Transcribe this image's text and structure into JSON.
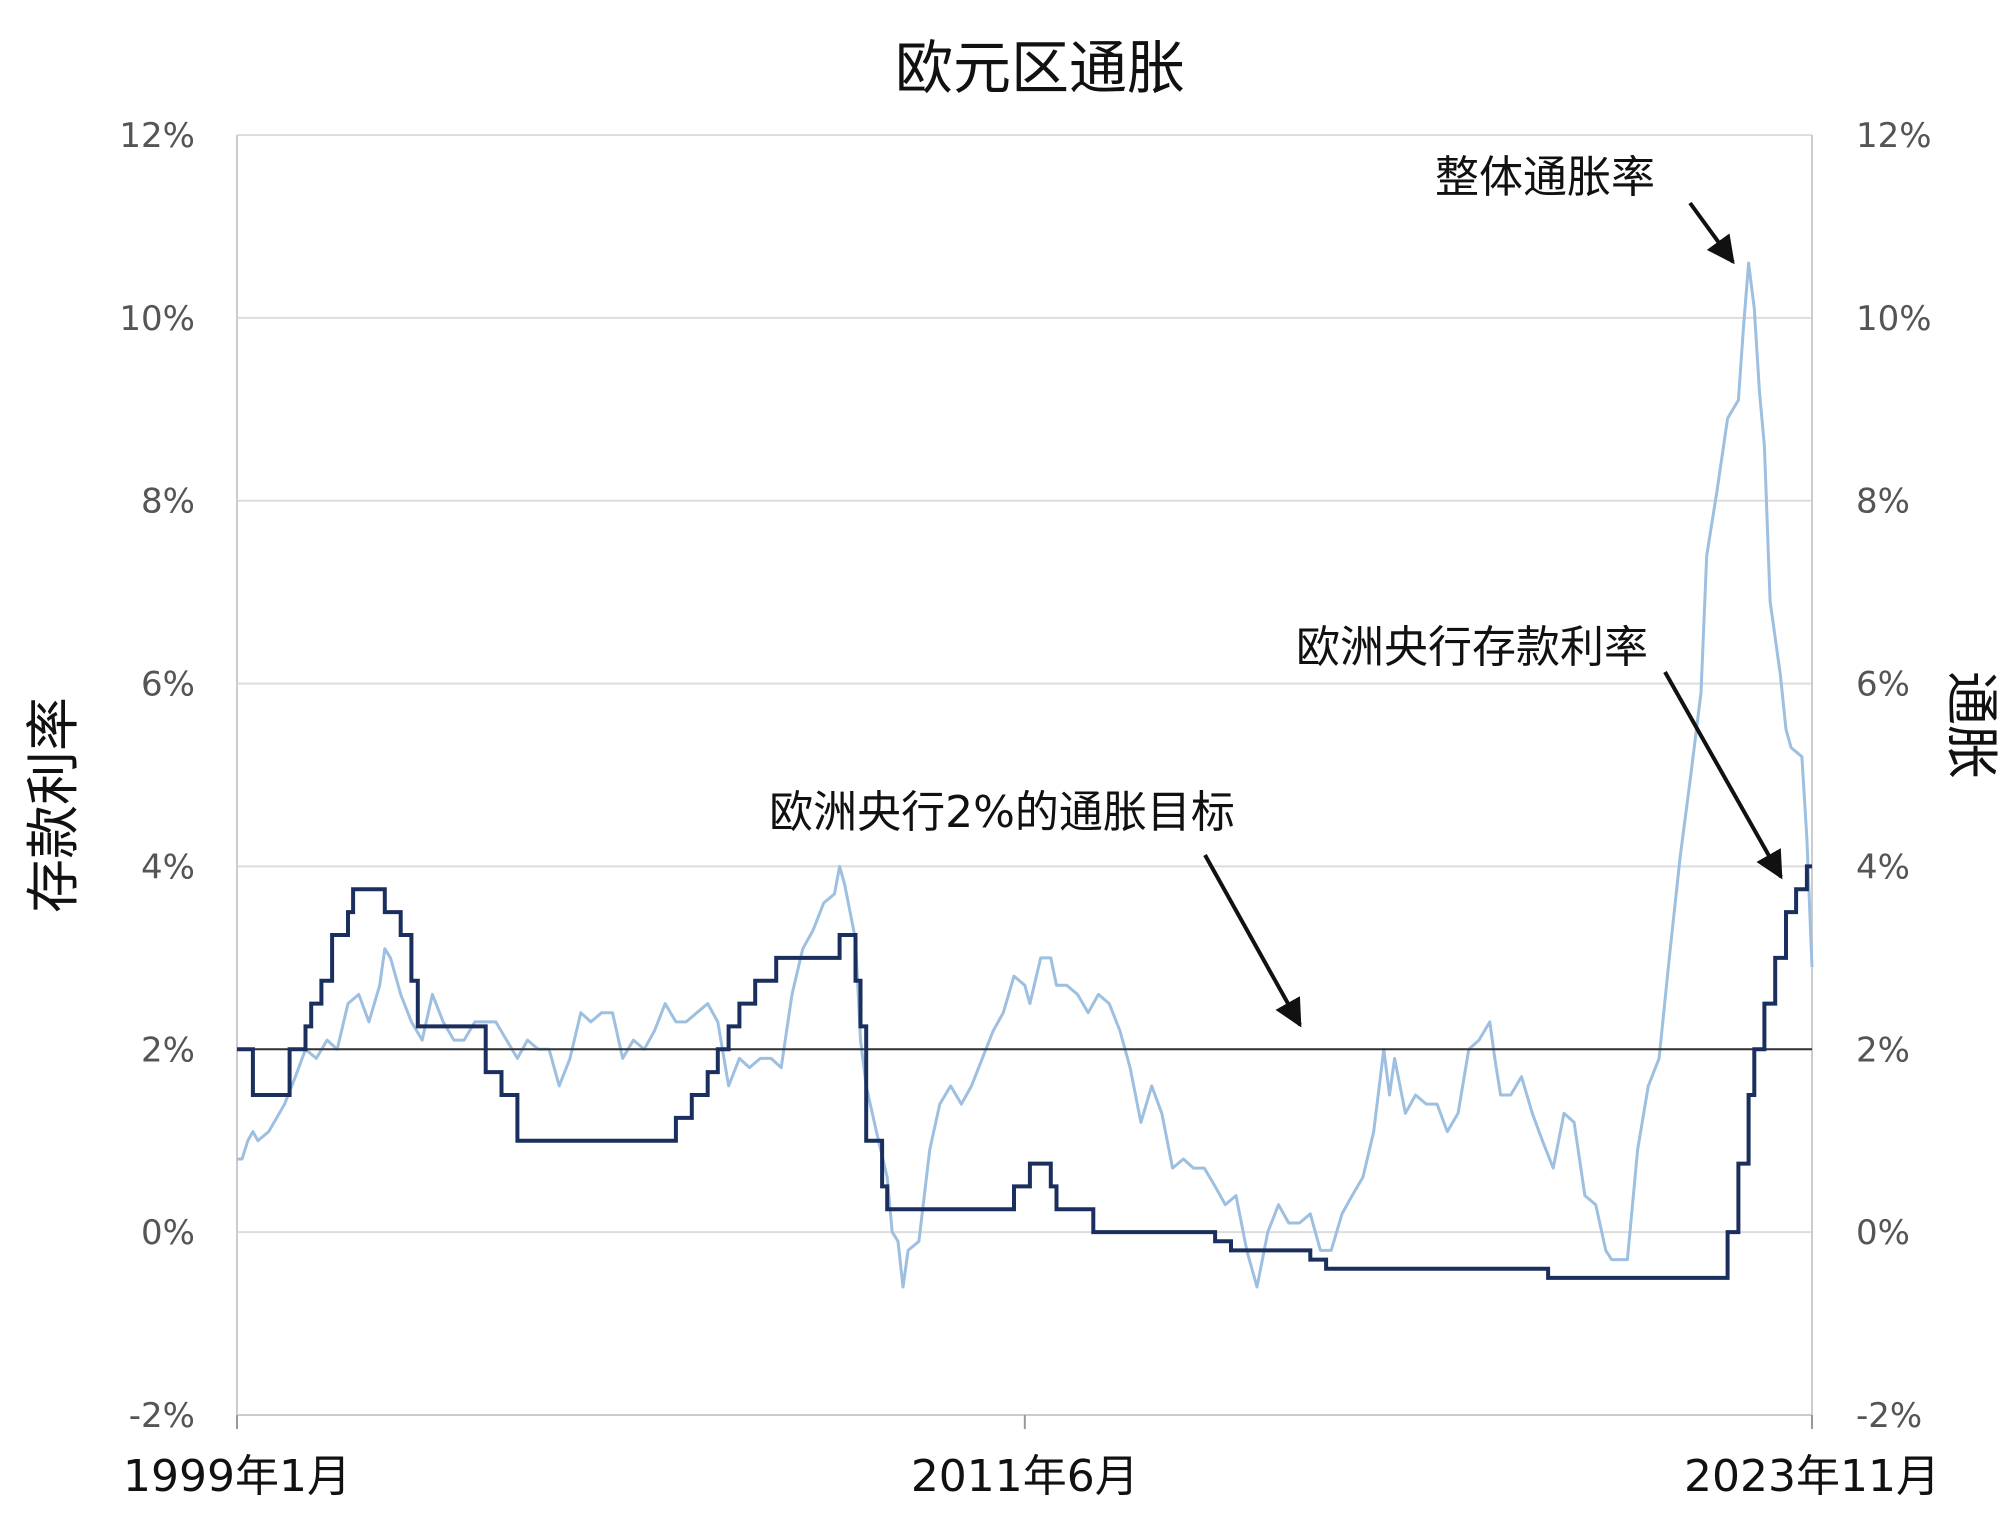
{
  "chart_data": {
    "type": "line",
    "title": "欧元区通胀",
    "ylabel_left": "存款利率",
    "ylabel_right": "通胀",
    "ylim": [
      -2,
      12
    ],
    "ytick_values": [
      -2,
      0,
      2,
      4,
      6,
      8,
      10,
      12
    ],
    "yticks_left": [
      "-2%",
      "0%",
      "2%",
      "4%",
      "6%",
      "8%",
      "10%",
      "12%"
    ],
    "yticks_right": [
      "-2%",
      "0%",
      "2%",
      "4%",
      "6%",
      "8%",
      "10%",
      "12%"
    ],
    "grid": true,
    "x_tick_labels": [
      {
        "label": "1999年1月",
        "value": 1999.0
      },
      {
        "label": "2011年6月",
        "value": 2011.42
      },
      {
        "label": "2023年11月",
        "value": 2023.83
      }
    ],
    "xlim": [
      1999.0,
      2023.83
    ],
    "annotations": [
      {
        "text": "整体通胀率"
      },
      {
        "text": "欧洲央行存款利率"
      },
      {
        "text": "欧洲央行2%的通胀目标"
      }
    ],
    "colors": {
      "deposit_rate": "#1b2f5e",
      "headline_inflation": "#9dbfe0",
      "target": "#333333",
      "grid": "#dddddd"
    },
    "series": [
      {
        "name": "欧洲央行存款利率",
        "step": true,
        "points": [
          [
            1999.0,
            2.0
          ],
          [
            1999.25,
            1.5
          ],
          [
            1999.83,
            2.0
          ],
          [
            2000.08,
            2.25
          ],
          [
            2000.17,
            2.5
          ],
          [
            2000.33,
            2.75
          ],
          [
            2000.5,
            3.25
          ],
          [
            2000.75,
            3.5
          ],
          [
            2000.83,
            3.75
          ],
          [
            2001.33,
            3.5
          ],
          [
            2001.58,
            3.25
          ],
          [
            2001.75,
            2.75
          ],
          [
            2001.85,
            2.25
          ],
          [
            2002.92,
            1.75
          ],
          [
            2003.17,
            1.5
          ],
          [
            2003.42,
            1.0
          ],
          [
            2005.92,
            1.25
          ],
          [
            2006.17,
            1.5
          ],
          [
            2006.42,
            1.75
          ],
          [
            2006.58,
            2.0
          ],
          [
            2006.75,
            2.25
          ],
          [
            2006.92,
            2.5
          ],
          [
            2007.17,
            2.75
          ],
          [
            2007.5,
            3.0
          ],
          [
            2008.5,
            3.25
          ],
          [
            2008.75,
            2.75
          ],
          [
            2008.83,
            2.25
          ],
          [
            2008.92,
            1.0
          ],
          [
            2009.0,
            1.0
          ],
          [
            2009.17,
            0.5
          ],
          [
            2009.25,
            0.25
          ],
          [
            2011.25,
            0.5
          ],
          [
            2011.5,
            0.75
          ],
          [
            2011.83,
            0.5
          ],
          [
            2011.92,
            0.25
          ],
          [
            2012.5,
            0.0
          ],
          [
            2014.42,
            -0.1
          ],
          [
            2014.67,
            -0.2
          ],
          [
            2015.92,
            -0.3
          ],
          [
            2016.17,
            -0.4
          ],
          [
            2019.67,
            -0.5
          ],
          [
            2022.5,
            0.0
          ],
          [
            2022.67,
            0.75
          ],
          [
            2022.83,
            1.5
          ],
          [
            2022.92,
            2.0
          ],
          [
            2023.08,
            2.5
          ],
          [
            2023.25,
            3.0
          ],
          [
            2023.42,
            3.5
          ],
          [
            2023.58,
            3.75
          ],
          [
            2023.75,
            4.0
          ],
          [
            2023.83,
            4.0
          ]
        ]
      },
      {
        "name": "整体通胀率",
        "step": false,
        "points": [
          [
            1999.0,
            0.8
          ],
          [
            1999.08,
            0.8
          ],
          [
            1999.17,
            1.0
          ],
          [
            1999.25,
            1.1
          ],
          [
            1999.33,
            1.0
          ],
          [
            1999.5,
            1.1
          ],
          [
            1999.75,
            1.4
          ],
          [
            1999.92,
            1.7
          ],
          [
            2000.08,
            2.0
          ],
          [
            2000.25,
            1.9
          ],
          [
            2000.42,
            2.1
          ],
          [
            2000.58,
            2.0
          ],
          [
            2000.75,
            2.5
          ],
          [
            2000.92,
            2.6
          ],
          [
            2001.08,
            2.3
          ],
          [
            2001.25,
            2.7
          ],
          [
            2001.33,
            3.1
          ],
          [
            2001.42,
            3.0
          ],
          [
            2001.58,
            2.6
          ],
          [
            2001.75,
            2.3
          ],
          [
            2001.92,
            2.1
          ],
          [
            2002.08,
            2.6
          ],
          [
            2002.25,
            2.3
          ],
          [
            2002.42,
            2.1
          ],
          [
            2002.58,
            2.1
          ],
          [
            2002.75,
            2.3
          ],
          [
            2002.92,
            2.3
          ],
          [
            2003.08,
            2.3
          ],
          [
            2003.25,
            2.1
          ],
          [
            2003.42,
            1.9
          ],
          [
            2003.58,
            2.1
          ],
          [
            2003.75,
            2.0
          ],
          [
            2003.92,
            2.0
          ],
          [
            2004.08,
            1.6
          ],
          [
            2004.25,
            1.9
          ],
          [
            2004.42,
            2.4
          ],
          [
            2004.58,
            2.3
          ],
          [
            2004.75,
            2.4
          ],
          [
            2004.92,
            2.4
          ],
          [
            2005.08,
            1.9
          ],
          [
            2005.25,
            2.1
          ],
          [
            2005.42,
            2.0
          ],
          [
            2005.58,
            2.2
          ],
          [
            2005.75,
            2.5
          ],
          [
            2005.92,
            2.3
          ],
          [
            2006.08,
            2.3
          ],
          [
            2006.25,
            2.4
          ],
          [
            2006.42,
            2.5
          ],
          [
            2006.58,
            2.3
          ],
          [
            2006.75,
            1.6
          ],
          [
            2006.92,
            1.9
          ],
          [
            2007.08,
            1.8
          ],
          [
            2007.25,
            1.9
          ],
          [
            2007.42,
            1.9
          ],
          [
            2007.58,
            1.8
          ],
          [
            2007.75,
            2.6
          ],
          [
            2007.92,
            3.1
          ],
          [
            2008.08,
            3.3
          ],
          [
            2008.25,
            3.6
          ],
          [
            2008.42,
            3.7
          ],
          [
            2008.5,
            4.0
          ],
          [
            2008.58,
            3.8
          ],
          [
            2008.75,
            3.2
          ],
          [
            2008.83,
            2.1
          ],
          [
            2008.92,
            1.6
          ],
          [
            2009.08,
            1.1
          ],
          [
            2009.25,
            0.6
          ],
          [
            2009.33,
            0.0
          ],
          [
            2009.42,
            -0.1
          ],
          [
            2009.5,
            -0.6
          ],
          [
            2009.58,
            -0.2
          ],
          [
            2009.75,
            -0.1
          ],
          [
            2009.92,
            0.9
          ],
          [
            2010.08,
            1.4
          ],
          [
            2010.25,
            1.6
          ],
          [
            2010.42,
            1.4
          ],
          [
            2010.58,
            1.6
          ],
          [
            2010.75,
            1.9
          ],
          [
            2010.92,
            2.2
          ],
          [
            2011.08,
            2.4
          ],
          [
            2011.25,
            2.8
          ],
          [
            2011.42,
            2.7
          ],
          [
            2011.5,
            2.5
          ],
          [
            2011.67,
            3.0
          ],
          [
            2011.83,
            3.0
          ],
          [
            2011.92,
            2.7
          ],
          [
            2012.08,
            2.7
          ],
          [
            2012.25,
            2.6
          ],
          [
            2012.42,
            2.4
          ],
          [
            2012.58,
            2.6
          ],
          [
            2012.75,
            2.5
          ],
          [
            2012.92,
            2.2
          ],
          [
            2013.08,
            1.8
          ],
          [
            2013.25,
            1.2
          ],
          [
            2013.42,
            1.6
          ],
          [
            2013.58,
            1.3
          ],
          [
            2013.75,
            0.7
          ],
          [
            2013.92,
            0.8
          ],
          [
            2014.08,
            0.7
          ],
          [
            2014.25,
            0.7
          ],
          [
            2014.42,
            0.5
          ],
          [
            2014.58,
            0.3
          ],
          [
            2014.75,
            0.4
          ],
          [
            2014.92,
            -0.2
          ],
          [
            2015.08,
            -0.6
          ],
          [
            2015.25,
            0.0
          ],
          [
            2015.42,
            0.3
          ],
          [
            2015.58,
            0.1
          ],
          [
            2015.75,
            0.1
          ],
          [
            2015.92,
            0.2
          ],
          [
            2016.08,
            -0.2
          ],
          [
            2016.25,
            -0.2
          ],
          [
            2016.42,
            0.2
          ],
          [
            2016.58,
            0.4
          ],
          [
            2016.75,
            0.6
          ],
          [
            2016.92,
            1.1
          ],
          [
            2017.08,
            2.0
          ],
          [
            2017.17,
            1.5
          ],
          [
            2017.25,
            1.9
          ],
          [
            2017.42,
            1.3
          ],
          [
            2017.58,
            1.5
          ],
          [
            2017.75,
            1.4
          ],
          [
            2017.92,
            1.4
          ],
          [
            2018.08,
            1.1
          ],
          [
            2018.25,
            1.3
          ],
          [
            2018.42,
            2.0
          ],
          [
            2018.58,
            2.1
          ],
          [
            2018.75,
            2.3
          ],
          [
            2018.83,
            1.9
          ],
          [
            2018.92,
            1.5
          ],
          [
            2019.08,
            1.5
          ],
          [
            2019.25,
            1.7
          ],
          [
            2019.42,
            1.3
          ],
          [
            2019.58,
            1.0
          ],
          [
            2019.75,
            0.7
          ],
          [
            2019.92,
            1.3
          ],
          [
            2020.08,
            1.2
          ],
          [
            2020.25,
            0.4
          ],
          [
            2020.42,
            0.3
          ],
          [
            2020.58,
            -0.2
          ],
          [
            2020.67,
            -0.3
          ],
          [
            2020.75,
            -0.3
          ],
          [
            2020.92,
            -0.3
          ],
          [
            2021.08,
            0.9
          ],
          [
            2021.25,
            1.6
          ],
          [
            2021.42,
            1.9
          ],
          [
            2021.58,
            3.0
          ],
          [
            2021.75,
            4.1
          ],
          [
            2021.92,
            5.0
          ],
          [
            2022.08,
            5.9
          ],
          [
            2022.17,
            7.4
          ],
          [
            2022.33,
            8.1
          ],
          [
            2022.5,
            8.9
          ],
          [
            2022.67,
            9.1
          ],
          [
            2022.75,
            9.9
          ],
          [
            2022.83,
            10.6
          ],
          [
            2022.92,
            10.1
          ],
          [
            2023.0,
            9.2
          ],
          [
            2023.08,
            8.6
          ],
          [
            2023.17,
            6.9
          ],
          [
            2023.33,
            6.1
          ],
          [
            2023.42,
            5.5
          ],
          [
            2023.5,
            5.3
          ],
          [
            2023.67,
            5.2
          ],
          [
            2023.75,
            4.3
          ],
          [
            2023.83,
            2.9
          ]
        ]
      },
      {
        "name": "欧洲央行2%的通胀目标",
        "step": false,
        "points": [
          [
            1999.0,
            2.0
          ],
          [
            2023.83,
            2.0
          ]
        ]
      }
    ]
  }
}
